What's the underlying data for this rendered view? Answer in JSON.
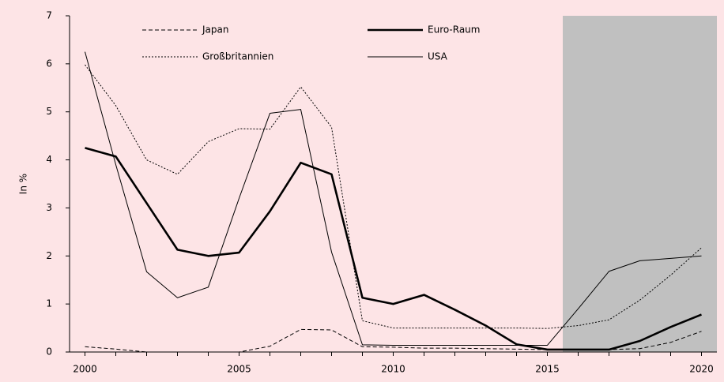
{
  "chart_data": {
    "type": "line",
    "y_label": "In %",
    "x": [
      2000,
      2001,
      2002,
      2003,
      2004,
      2005,
      2006,
      2007,
      2008,
      2009,
      2010,
      2011,
      2012,
      2013,
      2014,
      2015,
      2016,
      2017,
      2018,
      2019,
      2020
    ],
    "series": [
      {
        "name": "Japan",
        "color": "#000000",
        "style": "dashed",
        "values": [
          0.11,
          0.06,
          0,
          0,
          0,
          0,
          0.12,
          0.47,
          0.46,
          0.11,
          0.1,
          0.08,
          0.08,
          0.07,
          0.06,
          0.05,
          0.05,
          0.05,
          0.07,
          0.2,
          0.43
        ]
      },
      {
        "name": "Euro-Raum",
        "color": "#000000",
        "style": "thick",
        "values": [
          4.25,
          4.07,
          3.1,
          2.13,
          2.0,
          2.07,
          2.93,
          3.94,
          3.7,
          1.13,
          1.0,
          1.19,
          0.88,
          0.55,
          0.16,
          0.05,
          0.05,
          0.05,
          0.23,
          0.52,
          0.78
        ]
      },
      {
        "name": "Großbritannien",
        "color": "#000000",
        "style": "dotted",
        "values": [
          5.98,
          5.13,
          4.0,
          3.7,
          4.38,
          4.65,
          4.64,
          5.52,
          4.68,
          0.65,
          0.5,
          0.5,
          0.5,
          0.5,
          0.5,
          0.49,
          0.55,
          0.67,
          1.08,
          1.6,
          2.17
        ]
      },
      {
        "name": "USA",
        "color": "#000000",
        "style": "thin",
        "values": [
          6.25,
          3.9,
          1.67,
          1.13,
          1.35,
          3.2,
          4.97,
          5.05,
          2.08,
          0.15,
          0.14,
          0.14,
          0.14,
          0.14,
          0.14,
          0.14,
          0.9,
          1.68,
          1.9,
          1.95,
          2.0
        ]
      }
    ],
    "xlim": [
      1999.5,
      2020.5
    ],
    "xticks": [
      2000,
      2005,
      2010,
      2015,
      2020
    ],
    "xminor_ticks": [
      2000,
      2001,
      2002,
      2003,
      2004,
      2005,
      2006,
      2007,
      2008,
      2009,
      2010,
      2011,
      2012,
      2013,
      2014,
      2015,
      2016,
      2017,
      2018,
      2019,
      2020
    ],
    "ylim": [
      0,
      7
    ],
    "yticks": [
      0,
      1,
      2,
      3,
      4,
      5,
      6,
      7
    ],
    "shade_xrange": [
      2015.5,
      2020.5
    ],
    "shade_color": "#c0c0c0",
    "grid": false
  }
}
